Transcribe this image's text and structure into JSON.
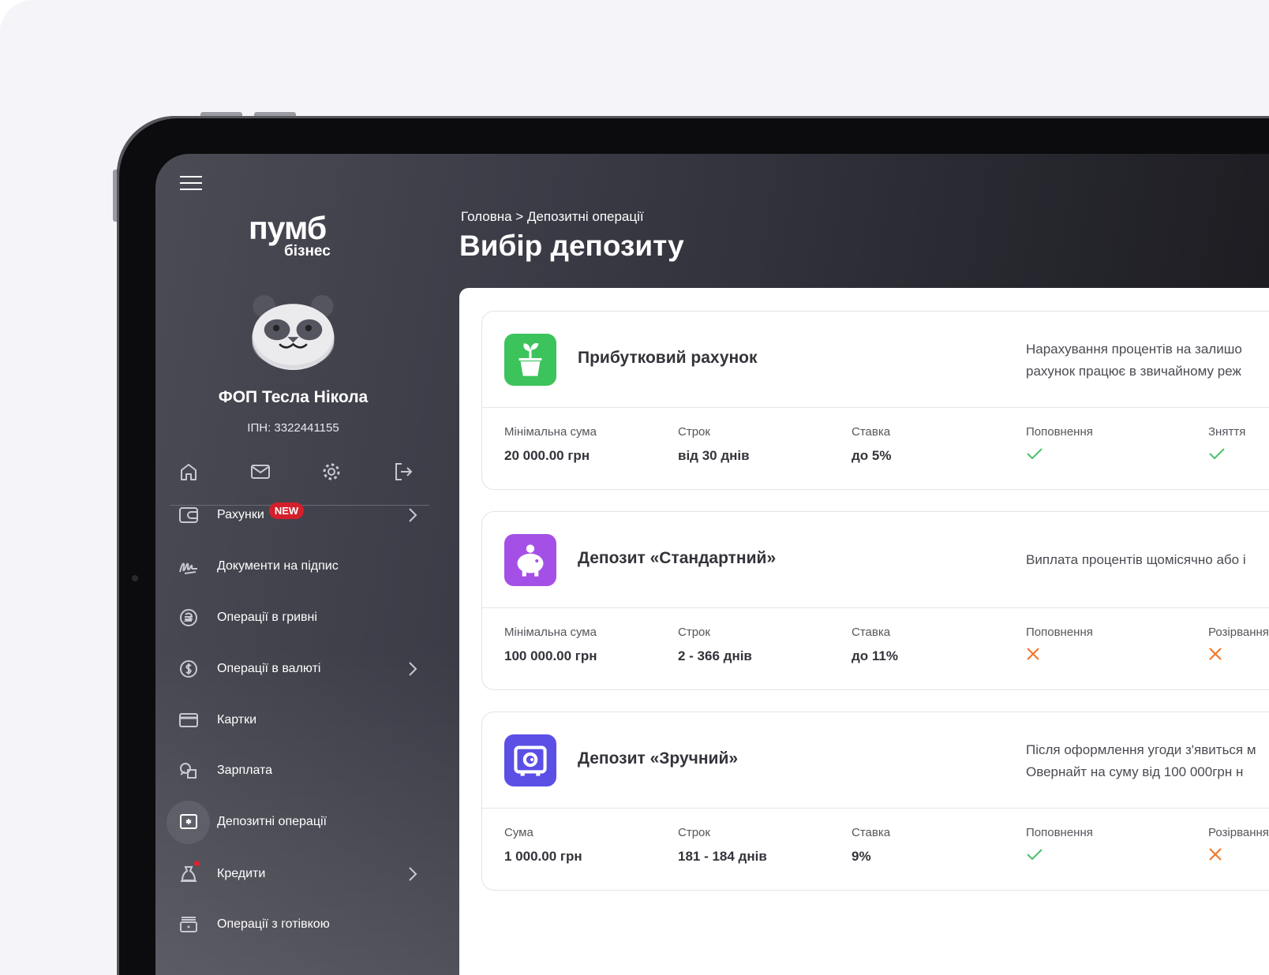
{
  "colors": {
    "accent_green": "#3cc35c",
    "accent_purple": "#a450e6",
    "accent_blue": "#5b4fe6",
    "check": "#4cbf6a",
    "cross": "#f07a2a",
    "badge": "#d4202c"
  },
  "sidebar": {
    "logo_main": "пумб",
    "logo_sub": "бізнес",
    "user_name": "ФОП Тесла Нікола",
    "inn": "ІПН: 3322441155",
    "quick_icons": [
      "home-icon",
      "mail-icon",
      "gear-icon",
      "logout-icon"
    ],
    "items": [
      {
        "label": "Рахунки",
        "icon": "wallet-icon",
        "badge": "NEW",
        "chevron": true
      },
      {
        "label": "Документи на підпис",
        "icon": "signature-icon"
      },
      {
        "label": "Операції в гривні",
        "icon": "hryvnia-icon"
      },
      {
        "label": "Операції в валюті",
        "icon": "dollar-icon",
        "chevron": true
      },
      {
        "label": "Картки",
        "icon": "card-icon"
      },
      {
        "label": "Зарплата",
        "icon": "salary-icon"
      },
      {
        "label": "Депозитні операції",
        "icon": "safe-icon",
        "active": true
      },
      {
        "label": "Кредити",
        "icon": "moneybag-icon",
        "chevron": true,
        "dot": true
      },
      {
        "label": "Операції з готівкою",
        "icon": "cash-icon"
      }
    ]
  },
  "header": {
    "breadcrumb": "Головна > Депозитні операції",
    "title": "Вибір депозиту"
  },
  "deposits": [
    {
      "title": "Прибутковий рахунок",
      "icon": "plant-icon",
      "desc": [
        "Нарахування процентів на залишо",
        "рахунок працює в звичайному реж"
      ],
      "stats": [
        {
          "label": "Мінімальна сума",
          "value": "20 000.00 грн"
        },
        {
          "label": "Строк",
          "value": "від 30 днів"
        },
        {
          "label": "Ставка",
          "value": "до 5%"
        }
      ],
      "flags": [
        {
          "label": "Поповнення",
          "ok": true
        },
        {
          "label": "Зняття",
          "ok": true
        }
      ]
    },
    {
      "title": "Депозит «Стандартний»",
      "icon": "piggy-bank-icon",
      "desc": [
        "Виплата процентів щомісячно або і"
      ],
      "stats": [
        {
          "label": "Мінімальна сума",
          "value": "100 000.00 грн"
        },
        {
          "label": "Строк",
          "value": "2 - 366 днів"
        },
        {
          "label": "Ставка",
          "value": "до 11%"
        }
      ],
      "flags": [
        {
          "label": "Поповнення",
          "ok": false
        },
        {
          "label": "Розірвання",
          "ok": false
        }
      ]
    },
    {
      "title": "Депозит «Зручний»",
      "icon": "safe-box-icon",
      "desc": [
        "Після оформлення угоди з'явиться м",
        "Овернайт на суму від 100 000грн н"
      ],
      "stats": [
        {
          "label": "Сума",
          "value": "1 000.00 грн"
        },
        {
          "label": "Строк",
          "value": "181 - 184 днів"
        },
        {
          "label": "Ставка",
          "value": "9%"
        }
      ],
      "flags": [
        {
          "label": "Поповнення",
          "ok": true
        },
        {
          "label": "Розірвання",
          "ok": false
        }
      ]
    }
  ]
}
